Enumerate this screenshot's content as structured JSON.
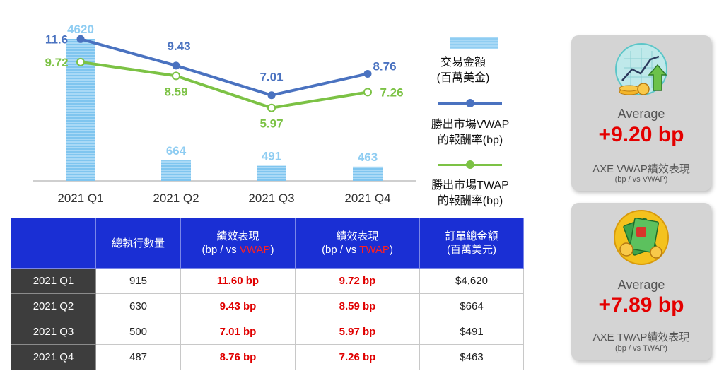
{
  "chart_data": {
    "type": "bar+line",
    "categories": [
      "2021 Q1",
      "2021 Q2",
      "2021 Q3",
      "2021 Q4"
    ],
    "bars": {
      "name": "交易金額\n(百萬美金)",
      "values": [
        4620,
        664,
        491,
        463
      ],
      "color": "#8fcdf2"
    },
    "series": [
      {
        "name": "勝出市場VWAP\n的報酬率(bp)",
        "values": [
          11.6,
          9.43,
          7.01,
          8.76
        ],
        "labels": [
          "11.6",
          "9.43",
          "7.01",
          "8.76"
        ],
        "color": "#4a72c0"
      },
      {
        "name": "勝出市場TWAP\n的報酬率(bp)",
        "values": [
          9.72,
          8.59,
          5.97,
          7.26
        ],
        "labels": [
          "9.72",
          "8.59",
          "5.97",
          "7.26"
        ],
        "color": "#7cc245"
      }
    ],
    "bar_ylim": [
      0,
      4620
    ],
    "line_ylim": [
      0,
      12.6
    ]
  },
  "legend": {
    "bar": [
      "交易金額",
      "(百萬美金)"
    ],
    "vwap": [
      "勝出市場VWAP",
      "的報酬率(bp)"
    ],
    "twap": [
      "勝出市場TWAP",
      "的報酬率(bp)"
    ]
  },
  "table": {
    "headers": {
      "count": "總執行數量",
      "vwap_top": "績效表現",
      "vwap_pre": "(bp / vs ",
      "vwap_hl": "VWAP",
      "vwap_post": ")",
      "twap_top": "績效表現",
      "twap_pre": "(bp / vs ",
      "twap_hl": "TWAP",
      "twap_post": ")",
      "amount_top": "訂單總金額",
      "amount_bottom": "(百萬美元)"
    },
    "rows": [
      {
        "quarter": "2021 Q1",
        "count": "915",
        "vwap": "11.60 bp",
        "twap": "9.72 bp",
        "amount": "$4,620"
      },
      {
        "quarter": "2021 Q2",
        "count": "630",
        "vwap": "9.43 bp",
        "twap": "8.59 bp",
        "amount": "$664"
      },
      {
        "quarter": "2021 Q3",
        "count": "500",
        "vwap": "7.01 bp",
        "twap": "5.97 bp",
        "amount": "$491"
      },
      {
        "quarter": "2021 Q4",
        "count": "487",
        "vwap": "8.76 bp",
        "twap": "7.26 bp",
        "amount": "$463"
      }
    ]
  },
  "cards": {
    "vwap": {
      "average": "Average",
      "value": "+9.20 bp",
      "label": "AXE VWAP績效表現",
      "sub": "(bp / vs VWAP)"
    },
    "twap": {
      "average": "Average",
      "value": "+7.89 bp",
      "label": "AXE TWAP績效表現",
      "sub": "(bp / vs TWAP)"
    }
  }
}
